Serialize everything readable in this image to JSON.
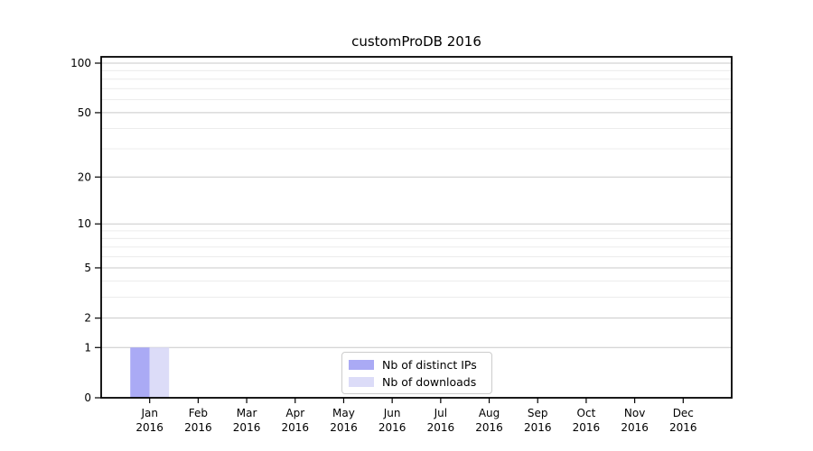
{
  "chart_data": {
    "type": "bar",
    "title": "customProDB 2016",
    "months": [
      "Jan",
      "Feb",
      "Mar",
      "Apr",
      "May",
      "Jun",
      "Jul",
      "Aug",
      "Sep",
      "Oct",
      "Nov",
      "Dec"
    ],
    "year": "2016",
    "series": [
      {
        "name": "Nb of distinct IPs",
        "color": "#aaaaf5",
        "values": [
          1,
          0,
          0,
          0,
          0,
          0,
          0,
          0,
          0,
          0,
          0,
          0
        ]
      },
      {
        "name": "Nb of downloads",
        "color": "#dcdcf8",
        "values": [
          1,
          0,
          0,
          0,
          0,
          0,
          0,
          0,
          0,
          0,
          0,
          0
        ]
      }
    ],
    "y_ticks": [
      0,
      1,
      2,
      5,
      10,
      20,
      50,
      100
    ],
    "y_minor_gridlines": [
      3,
      4,
      6,
      7,
      8,
      9,
      30,
      40,
      60,
      70,
      80,
      90
    ],
    "ylim": [
      0,
      100
    ],
    "y_scale": "log1p",
    "grid": true,
    "legend_position": "bottom-center-inside",
    "colors": {
      "major_grid": "#c9c9c9",
      "minor_grid": "#ececec",
      "axis": "#000000",
      "background": "#ffffff"
    }
  }
}
